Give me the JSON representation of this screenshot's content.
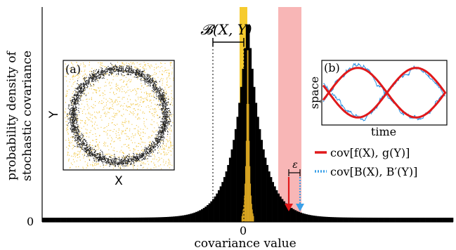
{
  "chart_data": {
    "type": "histogram",
    "xlabel": "covariance value",
    "ylabel_line1": "probability density of",
    "ylabel_line2": "stochastic covariance",
    "x_tick_label": "0",
    "y_tick_label": "0",
    "distribution": {
      "description_shape": "symmetric sharply peaked heavy-tailed",
      "x_range": [
        -1.0,
        1.0
      ],
      "scale_black": 0.07,
      "scale_gold": 0.008
    },
    "bracket_label": "𝓑(X, Y)",
    "epsilon_label": "ε",
    "highlight_colors": {
      "gold_band": "#f5c518",
      "red_band": "#f8b6b6",
      "black_series": "#000000",
      "gold_series": "#d9a521"
    },
    "legend": [
      {
        "label": "cov[f(X), g(Y)]",
        "style": "solid",
        "color": "#e0191b"
      },
      {
        "label": "cov[B(X), B′(Y)]",
        "style": "dotted",
        "color": "#3aa0e8"
      }
    ],
    "inset_a": {
      "panel_label": "(a)",
      "xlabel": "X",
      "ylabel": "Y",
      "ring_color": "#222222",
      "uniform_color": "#f0c33a"
    },
    "inset_b": {
      "panel_label": "(b)",
      "xlabel": "time",
      "ylabel": "space",
      "smooth_color": "#e0191b",
      "brownian_color": "#2a8fe0"
    }
  }
}
